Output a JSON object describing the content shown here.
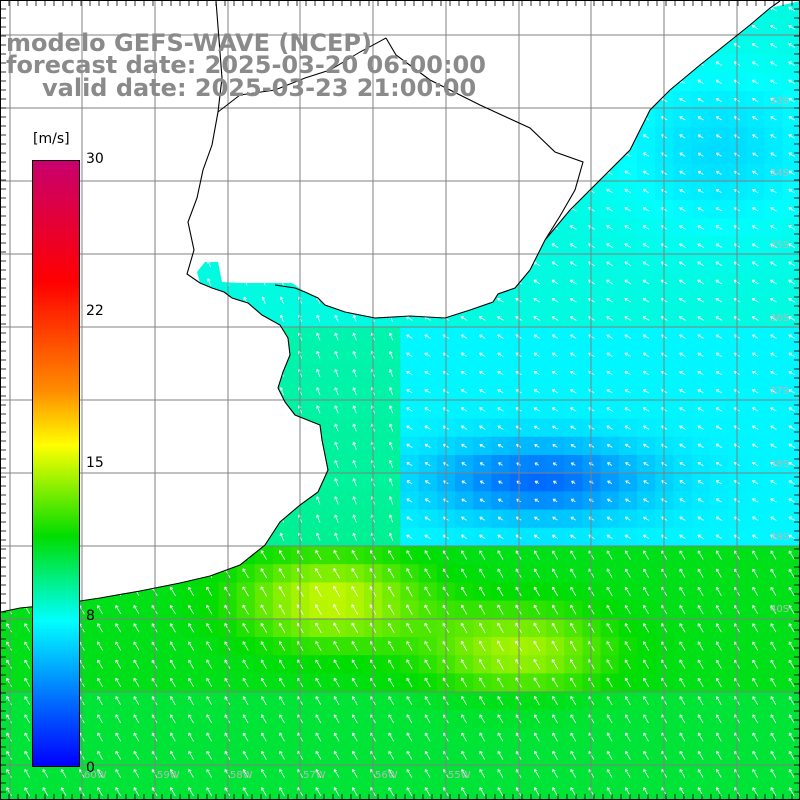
{
  "header": {
    "line1": "modelo GEFS-WAVE (NCEP)",
    "line2": "forecast date: 2025-03-20 06:00:00",
    "line3": "valid date: 2025-03-23 21:00:00"
  },
  "colorbar": {
    "unit": "[m/s]",
    "ticks": [
      "30",
      "22",
      "15",
      "8",
      "0"
    ],
    "range": [
      0,
      30
    ],
    "colors": [
      "#0000ff",
      "#0064ff",
      "#00ffff",
      "#00dd00",
      "#ffff00",
      "#ff8c00",
      "#ff0000",
      "#c8006e"
    ]
  },
  "map": {
    "land_color": "#ffffff",
    "coastline_color": "#000000",
    "gridline_color": "#808080",
    "lat_labels": [
      "33S",
      "34S",
      "35S",
      "36S",
      "37S",
      "38S",
      "39S",
      "40S"
    ],
    "lon_labels": [
      "60W",
      "59W",
      "58W",
      "57W",
      "56W",
      "55W"
    ]
  }
}
